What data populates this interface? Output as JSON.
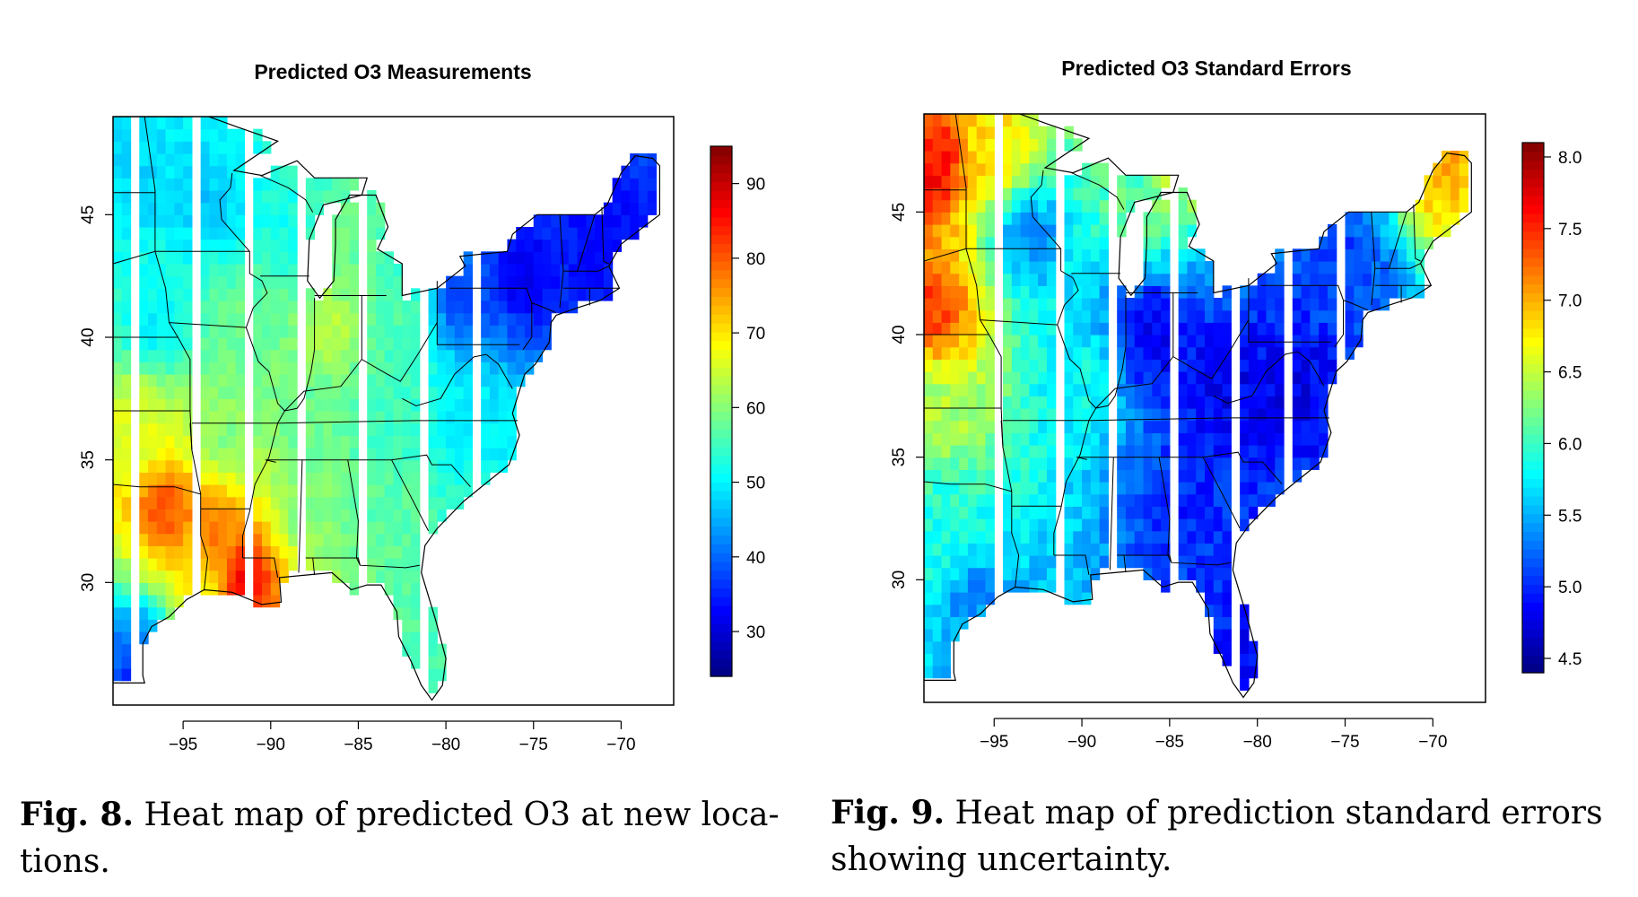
{
  "chart_data": [
    {
      "type": "heatmap",
      "title": "Predicted O3 Measurements",
      "xlabel": "",
      "ylabel": "",
      "xlim": [
        -99,
        -67
      ],
      "ylim": [
        25,
        49
      ],
      "xticks": [
        -95,
        -90,
        -85,
        -80,
        -75,
        -70
      ],
      "xtick_labels": [
        "−95",
        "−90",
        "−85",
        "−80",
        "−75",
        "−70"
      ],
      "yticks": [
        30,
        35,
        40,
        45
      ],
      "ytick_labels": [
        "30",
        "35",
        "40",
        "45"
      ],
      "colorbar": {
        "range": [
          24,
          95
        ],
        "ticks": [
          30,
          40,
          50,
          60,
          70,
          80,
          90
        ],
        "tick_labels": [
          "30",
          "40",
          "50",
          "60",
          "70",
          "80",
          "90"
        ],
        "colormap": "jet"
      },
      "field_keypoints": [
        {
          "lon": -97.5,
          "lat": 46.5,
          "value": 48
        },
        {
          "lon": -93.5,
          "lat": 45.5,
          "value": 47
        },
        {
          "lon": -89.0,
          "lat": 44.5,
          "value": 52
        },
        {
          "lon": -85.5,
          "lat": 44.5,
          "value": 58
        },
        {
          "lon": -96.5,
          "lat": 40.5,
          "value": 50
        },
        {
          "lon": -91.5,
          "lat": 40.5,
          "value": 58
        },
        {
          "lon": -86.5,
          "lat": 40.5,
          "value": 63
        },
        {
          "lon": -82.5,
          "lat": 40.5,
          "value": 56
        },
        {
          "lon": -79.0,
          "lat": 41.5,
          "value": 38
        },
        {
          "lon": -75.5,
          "lat": 42.5,
          "value": 32
        },
        {
          "lon": -71.0,
          "lat": 44.0,
          "value": 33
        },
        {
          "lon": -97.5,
          "lat": 36.5,
          "value": 66
        },
        {
          "lon": -92.5,
          "lat": 36.0,
          "value": 60
        },
        {
          "lon": -88.0,
          "lat": 36.5,
          "value": 58
        },
        {
          "lon": -83.5,
          "lat": 36.5,
          "value": 55
        },
        {
          "lon": -78.5,
          "lat": 36.5,
          "value": 50
        },
        {
          "lon": -96.0,
          "lat": 33.0,
          "value": 80
        },
        {
          "lon": -93.0,
          "lat": 32.0,
          "value": 77
        },
        {
          "lon": -91.5,
          "lat": 30.3,
          "value": 86
        },
        {
          "lon": -88.0,
          "lat": 33.0,
          "value": 60
        },
        {
          "lon": -84.0,
          "lat": 33.0,
          "value": 57
        },
        {
          "lon": -81.0,
          "lat": 28.5,
          "value": 56
        },
        {
          "lon": -97.5,
          "lat": 27.0,
          "value": 40
        },
        {
          "lon": -97.5,
          "lat": 26.0,
          "value": 34
        },
        {
          "lon": -94.0,
          "lat": 30.0,
          "value": 70
        }
      ]
    },
    {
      "type": "heatmap",
      "title": "Predicted O3 Standard Errors",
      "xlabel": "",
      "ylabel": "",
      "xlim": [
        -99,
        -67
      ],
      "ylim": [
        25,
        49
      ],
      "xticks": [
        -95,
        -90,
        -85,
        -80,
        -75,
        -70
      ],
      "xtick_labels": [
        "−95",
        "−90",
        "−85",
        "−80",
        "−75",
        "−70"
      ],
      "yticks": [
        30,
        35,
        40,
        45
      ],
      "ytick_labels": [
        "30",
        "35",
        "40",
        "45"
      ],
      "colorbar": {
        "range": [
          4.4,
          8.1
        ],
        "ticks": [
          4.5,
          5.0,
          5.5,
          6.0,
          6.5,
          7.0,
          7.5,
          8.0
        ],
        "tick_labels": [
          "4.5",
          "5.0",
          "5.5",
          "6.0",
          "6.5",
          "7.0",
          "7.5",
          "8.0"
        ],
        "colormap": "jet"
      },
      "field_keypoints": [
        {
          "lon": -98.5,
          "lat": 47.0,
          "value": 7.6
        },
        {
          "lon": -98.5,
          "lat": 41.0,
          "value": 7.4
        },
        {
          "lon": -98.0,
          "lat": 37.0,
          "value": 6.4
        },
        {
          "lon": -98.0,
          "lat": 32.0,
          "value": 5.9
        },
        {
          "lon": -95.0,
          "lat": 47.5,
          "value": 6.8
        },
        {
          "lon": -93.0,
          "lat": 44.0,
          "value": 5.4
        },
        {
          "lon": -90.0,
          "lat": 38.0,
          "value": 5.8
        },
        {
          "lon": -87.0,
          "lat": 46.0,
          "value": 6.1
        },
        {
          "lon": -85.0,
          "lat": 46.5,
          "value": 6.4
        },
        {
          "lon": -86.0,
          "lat": 40.0,
          "value": 4.8
        },
        {
          "lon": -82.0,
          "lat": 38.0,
          "value": 4.8
        },
        {
          "lon": -78.0,
          "lat": 38.0,
          "value": 4.8
        },
        {
          "lon": -84.0,
          "lat": 33.0,
          "value": 5.0
        },
        {
          "lon": -80.0,
          "lat": 28.0,
          "value": 4.9
        },
        {
          "lon": -75.0,
          "lat": 43.0,
          "value": 5.1
        },
        {
          "lon": -69.5,
          "lat": 47.0,
          "value": 7.0
        },
        {
          "lon": -96.0,
          "lat": 29.0,
          "value": 5.4
        }
      ]
    }
  ],
  "captions": [
    {
      "label": "Fig. 8.",
      "text": " Heat map of predicted O3 at new loca-",
      "line2": "tions."
    },
    {
      "label": "Fig. 9.",
      "text": " Heat map of prediction standard errors",
      "line2": "showing uncertainty."
    }
  ]
}
